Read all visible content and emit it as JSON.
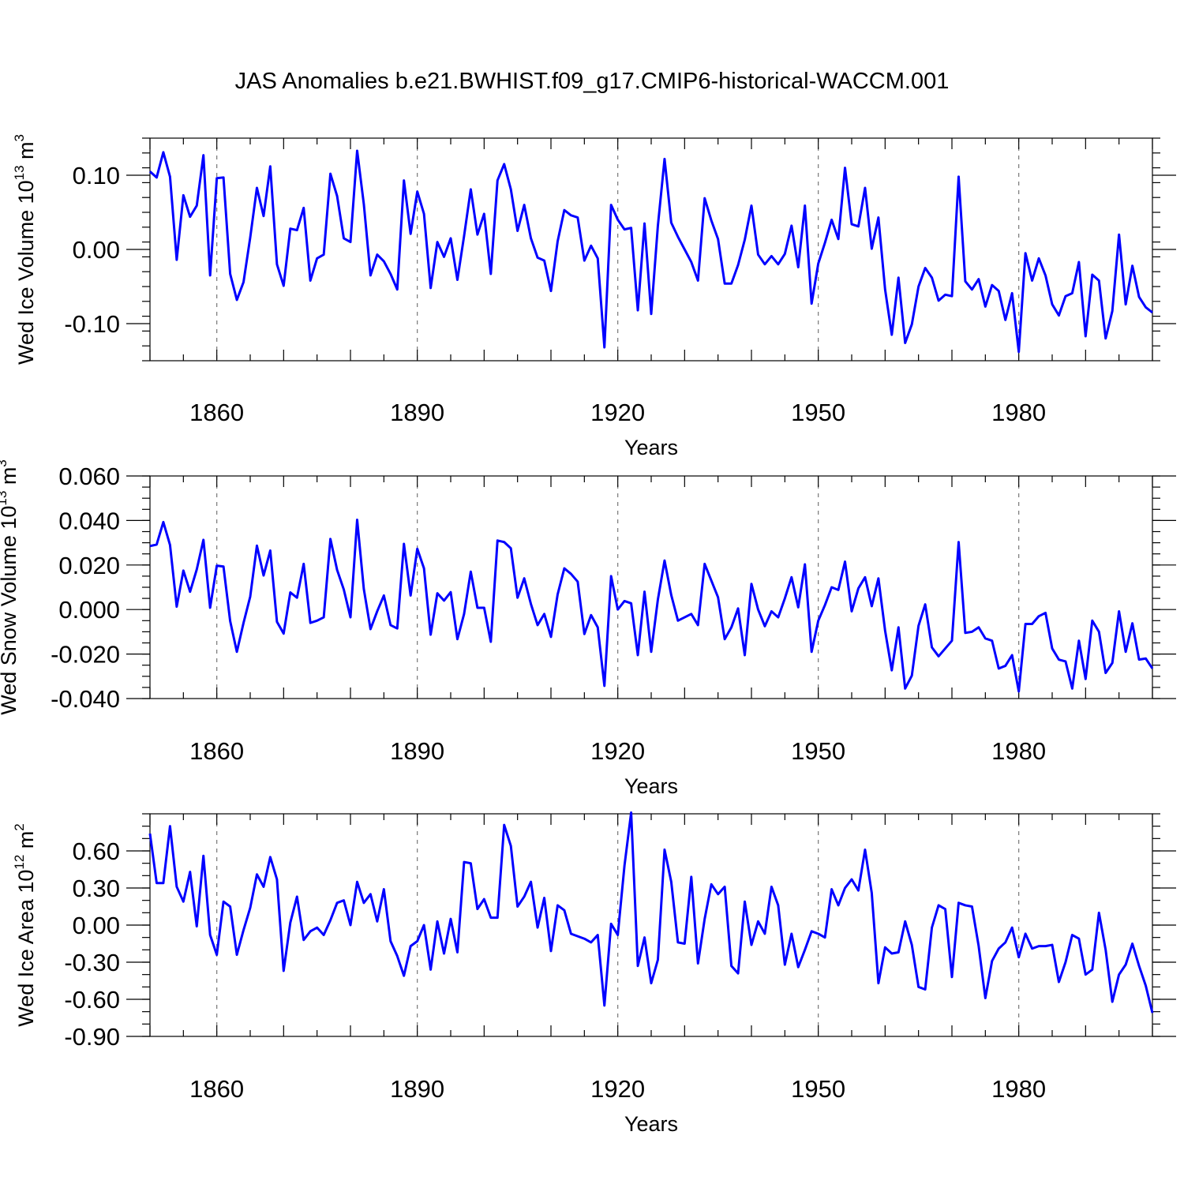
{
  "title": "JAS Anomalies b.e21.BWHIST.f09_g17.CMIP6-historical-WACCM.001",
  "colors": {
    "line": "#0000ff",
    "axes": "#000000",
    "grid": "#777777"
  },
  "chart_data": [
    {
      "type": "line",
      "name": "ice-volume",
      "ylabel": {
        "main": "Wed Ice Volume 10",
        "exponent": "13",
        "unit": " m",
        "unit_exp": "3"
      },
      "xlabel": "Years",
      "xlim": [
        1850,
        2000
      ],
      "ylim": [
        -0.15,
        0.15
      ],
      "x_ticks": [
        1860,
        1890,
        1920,
        1950,
        1980
      ],
      "x_tick_labels": [
        "1860",
        "1890",
        "1920",
        "1950",
        "1980"
      ],
      "y_ticks": [
        0.1,
        0.0,
        -0.1
      ],
      "y_tick_labels": [
        "0.10",
        "0.00",
        "-0.10"
      ],
      "y_minor_step": 0.02,
      "x_start": 1850,
      "values": [
        0.105,
        0.097,
        0.131,
        0.098,
        -0.014,
        0.073,
        0.044,
        0.059,
        0.127,
        -0.035,
        0.096,
        0.097,
        -0.033,
        -0.068,
        -0.044,
        0.016,
        0.083,
        0.045,
        0.112,
        -0.02,
        -0.049,
        0.028,
        0.026,
        0.056,
        -0.042,
        -0.012,
        -0.007,
        0.102,
        0.072,
        0.015,
        0.01,
        0.133,
        0.061,
        -0.035,
        -0.007,
        -0.016,
        -0.033,
        -0.054,
        0.093,
        0.021,
        0.078,
        0.048,
        -0.052,
        0.01,
        -0.01,
        0.015,
        -0.041,
        0.018,
        0.081,
        0.02,
        0.048,
        -0.033,
        0.093,
        0.115,
        0.081,
        0.025,
        0.06,
        0.015,
        -0.011,
        -0.015,
        -0.056,
        0.011,
        0.053,
        0.046,
        0.043,
        -0.015,
        0.005,
        -0.012,
        -0.132,
        0.06,
        0.04,
        0.027,
        0.029,
        -0.082,
        0.035,
        -0.087,
        0.032,
        0.122,
        0.036,
        0.017,
        0.0,
        -0.017,
        -0.042,
        0.069,
        0.039,
        0.014,
        -0.046,
        -0.046,
        -0.021,
        0.013,
        0.059,
        -0.007,
        -0.02,
        -0.009,
        -0.02,
        -0.006,
        0.032,
        -0.024,
        0.059,
        -0.073,
        -0.019,
        0.009,
        0.04,
        0.014,
        0.11,
        0.034,
        0.031,
        0.083,
        0.001,
        0.043,
        -0.054,
        -0.115,
        -0.038,
        -0.126,
        -0.101,
        -0.05,
        -0.025,
        -0.038,
        -0.069,
        -0.061,
        -0.063,
        0.098,
        -0.043,
        -0.054,
        -0.04,
        -0.077,
        -0.048,
        -0.056,
        -0.095,
        -0.059,
        -0.138,
        -0.005,
        -0.042,
        -0.012,
        -0.035,
        -0.074,
        -0.089,
        -0.063,
        -0.059,
        -0.017,
        -0.117,
        -0.034,
        -0.042,
        -0.12,
        -0.083,
        0.02,
        -0.074,
        -0.022,
        -0.064,
        -0.078,
        -0.085
      ]
    },
    {
      "type": "line",
      "name": "snow-volume",
      "ylabel": {
        "main": "Wed Snow Volume 10",
        "exponent": "13",
        "unit": " m",
        "unit_exp": "3"
      },
      "xlabel": "Years",
      "xlim": [
        1850,
        2000
      ],
      "ylim": [
        -0.04,
        0.06
      ],
      "x_ticks": [
        1860,
        1890,
        1920,
        1950,
        1980
      ],
      "x_tick_labels": [
        "1860",
        "1890",
        "1920",
        "1950",
        "1980"
      ],
      "y_ticks": [
        0.06,
        0.04,
        0.02,
        0.0,
        -0.02,
        -0.04
      ],
      "y_tick_labels": [
        "0.060",
        "0.040",
        "0.020",
        "0.000",
        "-0.020",
        "-0.040"
      ],
      "y_minor_step": 0.005,
      "x_start": 1850,
      "values": [
        0.0285,
        0.0292,
        0.0393,
        0.029,
        0.0013,
        0.0175,
        0.008,
        0.018,
        0.0313,
        0.0008,
        0.0197,
        0.0193,
        -0.0052,
        -0.019,
        -0.006,
        0.0058,
        0.0287,
        0.0153,
        0.0265,
        -0.0055,
        -0.0108,
        0.0077,
        0.0053,
        0.0205,
        -0.006,
        -0.005,
        -0.0035,
        0.0317,
        0.0178,
        0.009,
        -0.0035,
        0.0403,
        0.0092,
        -0.0088,
        -0.0008,
        0.0063,
        -0.007,
        -0.0085,
        0.0295,
        0.0063,
        0.0273,
        0.0185,
        -0.0113,
        0.0073,
        0.004,
        0.0078,
        -0.0133,
        -0.002,
        0.017,
        0.0008,
        0.0008,
        -0.0145,
        0.031,
        0.0303,
        0.0275,
        0.0053,
        0.014,
        0.0025,
        -0.007,
        -0.002,
        -0.0123,
        0.0068,
        0.0185,
        0.016,
        0.0125,
        -0.011,
        -0.0025,
        -0.008,
        -0.0343,
        0.015,
        0.0,
        0.0038,
        0.0028,
        -0.0205,
        0.008,
        -0.019,
        0.0045,
        0.022,
        0.0065,
        -0.005,
        -0.0035,
        -0.002,
        -0.007,
        0.0205,
        0.013,
        0.0055,
        -0.0133,
        -0.008,
        0.0005,
        -0.0205,
        0.0115,
        0.0,
        -0.0075,
        -0.0008,
        -0.0035,
        0.005,
        0.0145,
        0.001,
        0.0203,
        -0.019,
        -0.005,
        0.002,
        0.01,
        0.0088,
        0.0215,
        -0.0008,
        0.0095,
        0.0145,
        0.0015,
        0.014,
        -0.0095,
        -0.0273,
        -0.008,
        -0.0355,
        -0.0297,
        -0.0073,
        0.0023,
        -0.017,
        -0.021,
        -0.0175,
        -0.014,
        0.0303,
        -0.0105,
        -0.01,
        -0.008,
        -0.013,
        -0.014,
        -0.0265,
        -0.0253,
        -0.0205,
        -0.0368,
        -0.0065,
        -0.0065,
        -0.003,
        -0.0015,
        -0.0175,
        -0.0225,
        -0.0233,
        -0.0355,
        -0.014,
        -0.0312,
        -0.005,
        -0.01,
        -0.0285,
        -0.024,
        -0.0008,
        -0.019,
        -0.0062,
        -0.0225,
        -0.022,
        -0.0265
      ]
    },
    {
      "type": "line",
      "name": "ice-area",
      "ylabel": {
        "main": "Wed Ice Area 10",
        "exponent": "12",
        "unit": " m",
        "unit_exp": "2"
      },
      "xlabel": "Years",
      "xlim": [
        1850,
        2000
      ],
      "ylim": [
        -0.9,
        0.9
      ],
      "x_ticks": [
        1860,
        1890,
        1920,
        1950,
        1980
      ],
      "x_tick_labels": [
        "1860",
        "1890",
        "1920",
        "1950",
        "1980"
      ],
      "y_ticks": [
        0.6,
        0.3,
        0.0,
        -0.3,
        -0.6,
        -0.9
      ],
      "y_tick_labels": [
        "0.60",
        "0.30",
        "0.00",
        "-0.30",
        "-0.60",
        "-0.90"
      ],
      "y_minor_step": 0.1,
      "x_start": 1850,
      "values": [
        0.74,
        0.34,
        0.34,
        0.8,
        0.31,
        0.19,
        0.43,
        -0.01,
        0.56,
        -0.08,
        -0.24,
        0.19,
        0.15,
        -0.24,
        -0.04,
        0.14,
        0.41,
        0.31,
        0.55,
        0.37,
        -0.37,
        0.02,
        0.23,
        -0.12,
        -0.05,
        -0.02,
        -0.08,
        0.04,
        0.18,
        0.2,
        0.0,
        0.35,
        0.18,
        0.25,
        0.03,
        0.29,
        -0.13,
        -0.25,
        -0.41,
        -0.17,
        -0.13,
        0.0,
        -0.36,
        0.03,
        -0.23,
        0.05,
        -0.22,
        0.51,
        0.5,
        0.13,
        0.21,
        0.06,
        0.06,
        0.81,
        0.64,
        0.15,
        0.23,
        0.35,
        -0.02,
        0.22,
        -0.21,
        0.16,
        0.12,
        -0.07,
        -0.09,
        -0.11,
        -0.14,
        -0.08,
        -0.65,
        0.01,
        -0.08,
        0.48,
        0.91,
        -0.33,
        -0.1,
        -0.47,
        -0.28,
        0.61,
        0.35,
        -0.14,
        -0.15,
        0.39,
        -0.31,
        0.05,
        0.33,
        0.25,
        0.31,
        -0.33,
        -0.39,
        0.19,
        -0.16,
        0.03,
        -0.07,
        0.31,
        0.16,
        -0.32,
        -0.07,
        -0.34,
        -0.2,
        -0.05,
        -0.07,
        -0.1,
        0.29,
        0.16,
        0.3,
        0.37,
        0.28,
        0.61,
        0.26,
        -0.47,
        -0.18,
        -0.23,
        -0.22,
        0.03,
        -0.16,
        -0.5,
        -0.52,
        -0.02,
        0.16,
        0.13,
        -0.42,
        0.18,
        0.16,
        0.15,
        -0.17,
        -0.59,
        -0.29,
        -0.19,
        -0.14,
        -0.02,
        -0.26,
        -0.07,
        -0.19,
        -0.17,
        -0.17,
        -0.16,
        -0.46,
        -0.3,
        -0.08,
        -0.11,
        -0.4,
        -0.36,
        0.1,
        -0.2,
        -0.62,
        -0.4,
        -0.32,
        -0.15,
        -0.33,
        -0.49,
        -0.71
      ]
    }
  ]
}
